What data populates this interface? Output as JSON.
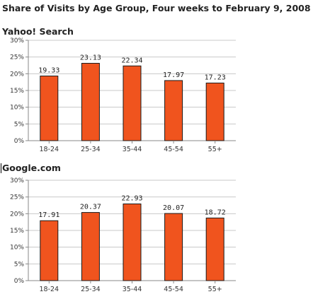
{
  "title": "Share of Visits by Age Group, Four weeks to February 9, 2008",
  "colors": {
    "bar": "#f0541e",
    "bar_edge": "#1a1a1a",
    "grid": "#c8c8c8",
    "axis": "#888888"
  },
  "chart_data": [
    {
      "type": "bar",
      "title": "Yahoo! Search",
      "categories": [
        "18-24",
        "25-34",
        "35-44",
        "45-54",
        "55+"
      ],
      "values": [
        19.33,
        23.13,
        22.34,
        17.97,
        17.23
      ],
      "value_labels": [
        "19.33",
        "23.13",
        "22.34",
        "17.97",
        "17.23"
      ],
      "yticks": [
        "0%",
        "5%",
        "10%",
        "15%",
        "20%",
        "25%",
        "30%"
      ],
      "ylim": [
        0,
        30
      ],
      "grid": true,
      "xlabel": "",
      "ylabel": ""
    },
    {
      "type": "bar",
      "title": "Google.com",
      "categories": [
        "18-24",
        "25-34",
        "35-44",
        "45-54",
        "55+"
      ],
      "values": [
        17.91,
        20.37,
        22.93,
        20.07,
        18.72
      ],
      "value_labels": [
        "17.91",
        "20.37",
        "22.93",
        "20.07",
        "18.72"
      ],
      "yticks": [
        "0%",
        "5%",
        "10%",
        "15%",
        "20%",
        "25%",
        "30%"
      ],
      "ylim": [
        0,
        30
      ],
      "grid": true,
      "xlabel": "",
      "ylabel": ""
    }
  ]
}
